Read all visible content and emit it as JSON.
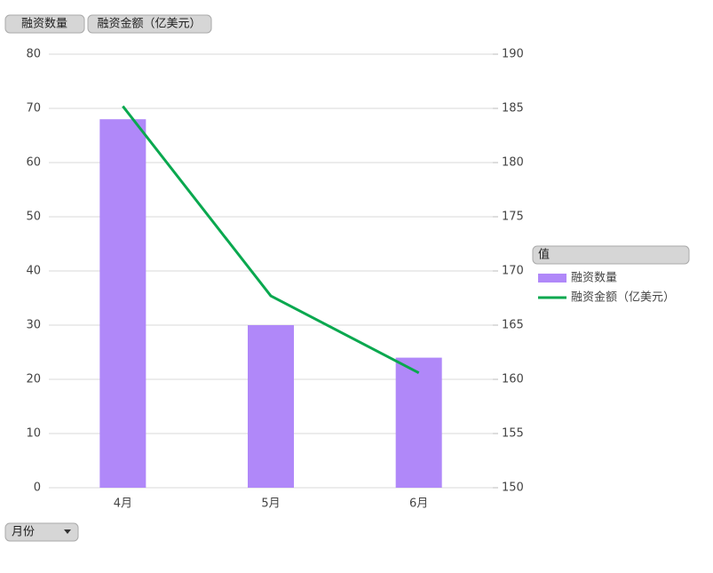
{
  "chart_data": {
    "type": "combo",
    "categories": [
      "4月",
      "5月",
      "6月"
    ],
    "series": [
      {
        "name": "融资数量",
        "type": "bar",
        "color": "#b088f9",
        "values": [
          68,
          30,
          24
        ]
      },
      {
        "name": "融资金额（亿美元）",
        "type": "line",
        "axis": "y2",
        "color": "#0aa84f",
        "values": [
          185.2,
          167.7,
          160.6
        ]
      }
    ],
    "ylim": [
      0,
      80
    ],
    "yticks": [
      0,
      10,
      20,
      30,
      40,
      50,
      60,
      70,
      80
    ],
    "y2lim": [
      150,
      190
    ],
    "y2ticks": [
      150,
      155,
      160,
      165,
      170,
      175,
      180,
      185,
      190
    ],
    "x_label": "月份",
    "legend_title": "值",
    "grid": true,
    "legend_position": "right"
  }
}
